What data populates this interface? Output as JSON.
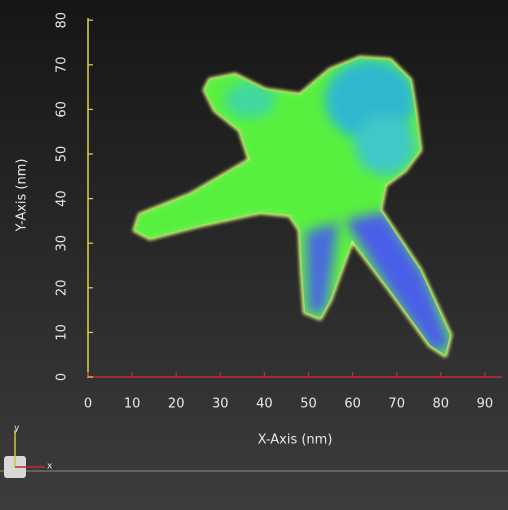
{
  "x_axis": {
    "label": "X-Axis (nm)",
    "ticks": [
      0,
      10,
      20,
      30,
      40,
      50,
      60,
      70,
      80,
      90
    ]
  },
  "y_axis": {
    "label": "Y-Axis (nm)",
    "ticks": [
      0,
      10,
      20,
      30,
      40,
      50,
      60,
      70,
      80
    ]
  },
  "gizmo": {
    "y_label": "y",
    "x_label": "x"
  }
}
